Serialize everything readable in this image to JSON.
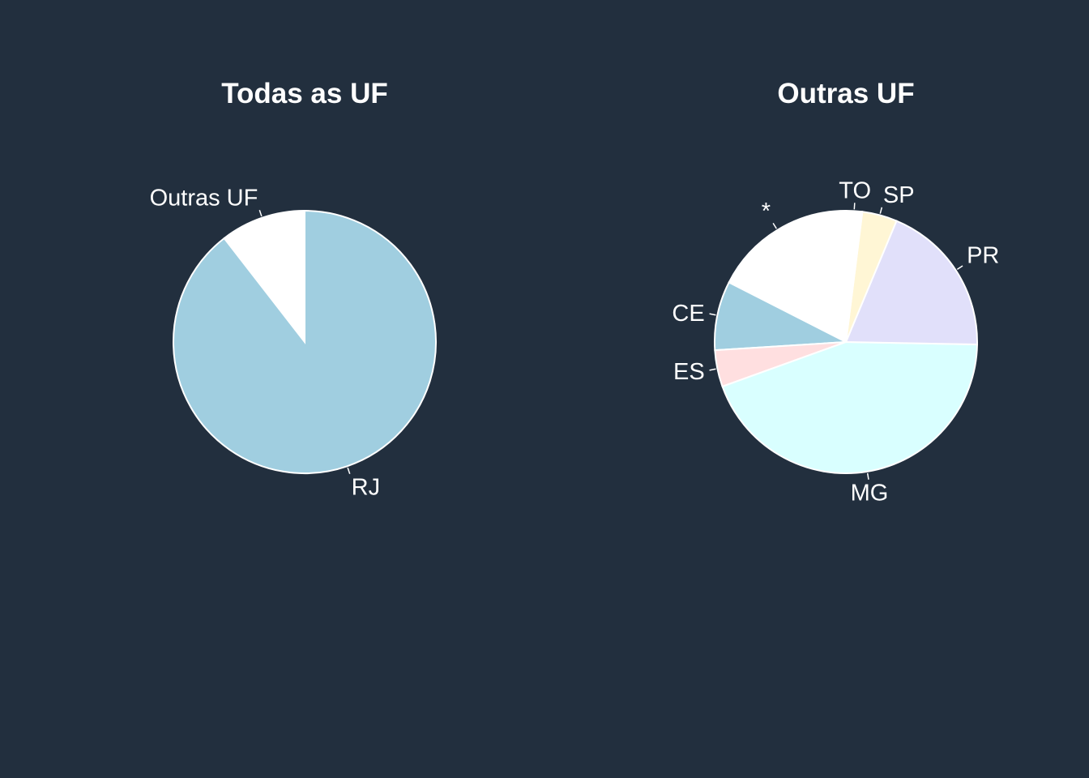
{
  "page": {
    "background": "#222f3e"
  },
  "chart_data": [
    {
      "type": "pie",
      "title": "Todas as UF",
      "start_angle_deg": 0,
      "direction": "counterclockwise",
      "slices": [
        {
          "label": "Outras UF",
          "value": 10.5,
          "color": "#ffffff"
        },
        {
          "label": "RJ",
          "value": 89.5,
          "color": "#a0cee0"
        }
      ]
    },
    {
      "type": "pie",
      "title": "Outras UF",
      "start_angle_deg": 0,
      "direction": "counterclockwise",
      "slices": [
        {
          "label": "*",
          "value": 17.5,
          "color": "#ffffff"
        },
        {
          "label": "CE",
          "value": 8.5,
          "color": "#a0cee0"
        },
        {
          "label": "ES",
          "value": 4.5,
          "color": "#ffdfe0"
        },
        {
          "label": "MG",
          "value": 44.2,
          "color": "#d9ffff"
        },
        {
          "label": "PR",
          "value": 19.0,
          "color": "#e1e0fa"
        },
        {
          "label": "SP",
          "value": 4.3,
          "color": "#fff6d5"
        },
        {
          "label": "TO",
          "value": 2.0,
          "color": "#ffffff"
        }
      ]
    }
  ]
}
